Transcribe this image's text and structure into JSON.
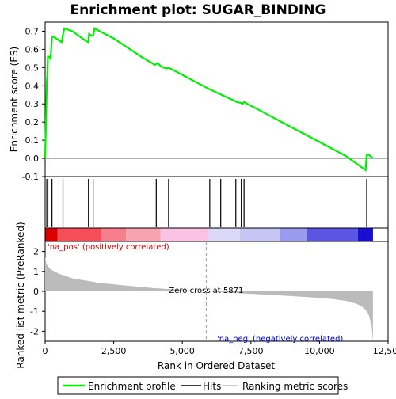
{
  "chart_data": {
    "type": "line",
    "title": "Enrichment plot: SUGAR_BINDING",
    "panels": {
      "enrichment": {
        "ylabel": "Enrichment score (ES)",
        "ylim": [
          -0.1,
          0.75
        ],
        "yticks": [
          "-0.1",
          "0.0",
          "0.1",
          "0.2",
          "0.3",
          "0.4",
          "0.5",
          "0.6",
          "0.7"
        ],
        "series": [
          {
            "name": "Enrichment profile",
            "x": [
              0,
              40,
              60,
              80,
              100,
              150,
              200,
              220,
              250,
              300,
              350,
              400,
              500,
              600,
              650,
              700,
              1000,
              1500,
              1580,
              1600,
              1700,
              1750,
              1800,
              2500,
              3500,
              4000,
              4050,
              4100,
              4200,
              4300,
              4450,
              4500,
              5000,
              6000,
              6500,
              7000,
              7150,
              7200,
              7250,
              8000,
              9000,
              10000,
              11000,
              11680,
              11720,
              11800,
              11950
            ],
            "y": [
              0.0,
              0.27,
              0.42,
              0.46,
              0.56,
              0.56,
              0.55,
              0.6,
              0.67,
              0.67,
              0.665,
              0.66,
              0.65,
              0.64,
              0.68,
              0.715,
              0.7,
              0.645,
              0.64,
              0.685,
              0.675,
              0.675,
              0.715,
              0.66,
              0.56,
              0.515,
              0.52,
              0.525,
              0.51,
              0.5,
              0.495,
              0.5,
              0.46,
              0.38,
              0.345,
              0.31,
              0.305,
              0.3,
              0.31,
              0.25,
              0.17,
              0.09,
              0.01,
              -0.065,
              0.02,
              0.02,
              0.0
            ]
          }
        ]
      },
      "hits": {
        "legend_label": "Hits",
        "positions": [
          60,
          100,
          250,
          650,
          1580,
          1750,
          4050,
          4500,
          6000,
          6400,
          6950,
          7150,
          7250,
          11720
        ]
      },
      "ranking": {
        "ylabel": "Ranked list metric (PreRanked)",
        "xlabel": "Rank in Ordered Dataset",
        "legend_label": "Ranking metric scores",
        "xlim": [
          0,
          12500
        ],
        "ylim": [
          -2.5,
          2.5
        ],
        "xticks": [
          "0",
          "2,500",
          "5,000",
          "7,500",
          "10,000",
          "12,500"
        ],
        "yticks": [
          "-2",
          "-1",
          "0",
          "1",
          "2"
        ],
        "x": [
          0,
          50,
          200,
          500,
          1000,
          2000,
          3000,
          4000,
          5000,
          5871,
          7000,
          8000,
          9000,
          10000,
          10500,
          11000,
          11300,
          11500,
          11700,
          11800,
          11900,
          11950
        ],
        "y": [
          1.75,
          1.35,
          1.1,
          0.88,
          0.65,
          0.42,
          0.28,
          0.16,
          0.07,
          0.0,
          -0.09,
          -0.16,
          -0.24,
          -0.33,
          -0.39,
          -0.49,
          -0.6,
          -0.72,
          -0.95,
          -1.2,
          -1.7,
          -2.55
        ],
        "zero_cross_label": "Zero cross at 5871",
        "zero_cross_x": 5871,
        "pos_label": "'na_pos' (positively correlated)",
        "neg_label": "'na_neg' (negatively correlated)"
      }
    },
    "colorbar": [
      {
        "start": 0,
        "end": 450,
        "color": "#dd0000"
      },
      {
        "start": 450,
        "end": 2050,
        "color": "#f44e58"
      },
      {
        "start": 2050,
        "end": 2950,
        "color": "#f77f8d"
      },
      {
        "start": 2950,
        "end": 4200,
        "color": "#f8a4b0"
      },
      {
        "start": 4200,
        "end": 5950,
        "color": "#fbc3e3"
      },
      {
        "start": 5950,
        "end": 7100,
        "color": "#dcd8f7"
      },
      {
        "start": 7100,
        "end": 8550,
        "color": "#c6c6f4"
      },
      {
        "start": 8550,
        "end": 9550,
        "color": "#9a9aef"
      },
      {
        "start": 9550,
        "end": 11400,
        "color": "#5b55e3"
      },
      {
        "start": 11400,
        "end": 11950,
        "color": "#1a0fd0"
      }
    ],
    "legend": {
      "items": [
        "Enrichment profile",
        "Hits",
        "Ranking metric scores"
      ],
      "placement": "bottom"
    },
    "colors": {
      "profile": "#00ee00",
      "hits": "#000000",
      "ranking_fill": "#bbbbbb",
      "pos_label": "#cc0000",
      "neg_label": "#0000cc"
    }
  }
}
